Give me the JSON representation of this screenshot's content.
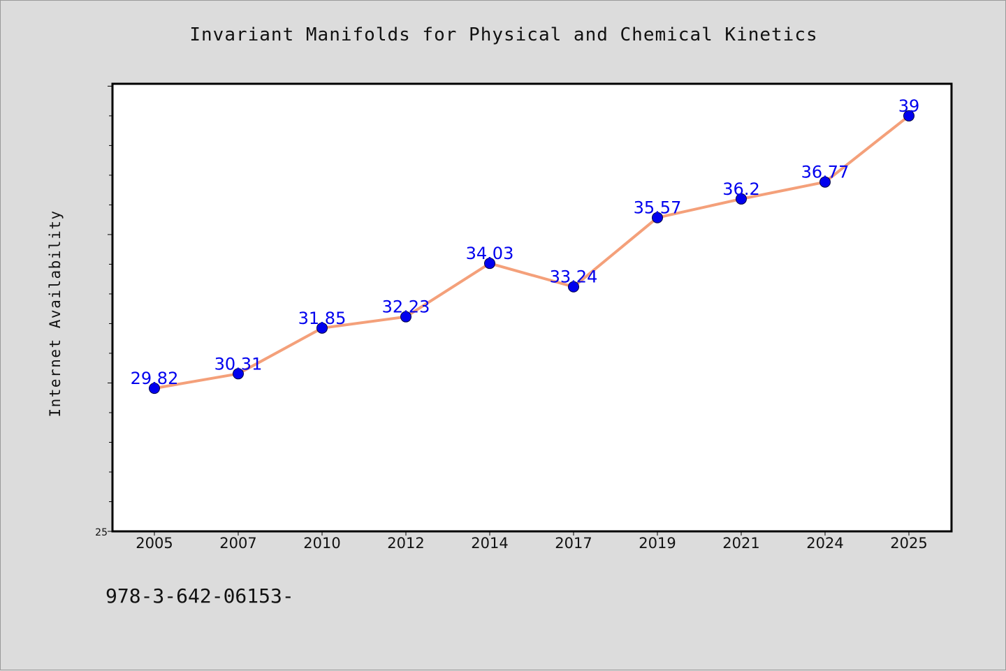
{
  "chart_data": {
    "type": "line",
    "title": "Invariant Manifolds for Physical and Chemical Kinetics",
    "ylabel": "Internet Availability",
    "xlabel": "",
    "categories": [
      "2005",
      "2007",
      "2010",
      "2012",
      "2014",
      "2017",
      "2019",
      "2021",
      "2024",
      "2025"
    ],
    "series": [
      {
        "values": [
          29.82,
          30.31,
          31.85,
          32.23,
          34.03,
          33.24,
          35.57,
          36.2,
          36.77,
          39
        ],
        "data_labels": [
          "29.82",
          "30.31",
          "31.85",
          "32.23",
          "34.03",
          "33.24",
          "35.57",
          "36.2",
          "36.77",
          "39"
        ],
        "line_color": "#f4a07a",
        "marker_color": "#0000ee"
      }
    ],
    "ylim": [
      25,
      40.08
    ],
    "y_tick_label": "25",
    "grid": false,
    "legend": "none"
  },
  "footer": {
    "isbn": "978-3-642-06153-"
  },
  "colors": {
    "background": "#dcdcdc",
    "plot_background": "#ffffff",
    "line": "#f4a07a",
    "marker": "#0000ee",
    "label": "#0000ee"
  }
}
